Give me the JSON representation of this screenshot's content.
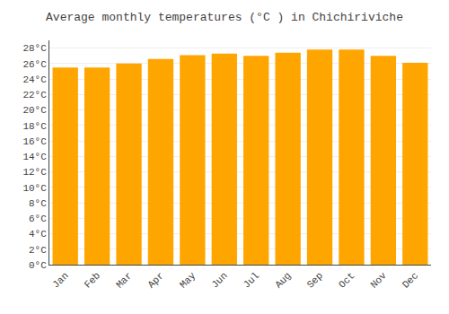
{
  "chart_data": {
    "type": "bar",
    "title": "Average monthly temperatures (°C ) in Chichiriviche",
    "categories": [
      "Jan",
      "Feb",
      "Mar",
      "Apr",
      "May",
      "Jun",
      "Jul",
      "Aug",
      "Sep",
      "Oct",
      "Nov",
      "Dec"
    ],
    "values": [
      25.5,
      25.5,
      26.0,
      26.6,
      27.1,
      27.3,
      27.0,
      27.4,
      27.8,
      27.8,
      27.0,
      26.1
    ],
    "color": "#FFA500",
    "ylim": [
      0,
      29
    ],
    "yticks": [
      {
        "value": 0,
        "label": "0°C"
      },
      {
        "value": 2,
        "label": "2°C"
      },
      {
        "value": 4,
        "label": "4°C"
      },
      {
        "value": 6,
        "label": "6°C"
      },
      {
        "value": 8,
        "label": "8°C"
      },
      {
        "value": 10,
        "label": "10°C"
      },
      {
        "value": 12,
        "label": "12°C"
      },
      {
        "value": 14,
        "label": "14°C"
      },
      {
        "value": 16,
        "label": "16°C"
      },
      {
        "value": 18,
        "label": "18°C"
      },
      {
        "value": 20,
        "label": "20°C"
      },
      {
        "value": 22,
        "label": "22°C"
      },
      {
        "value": 24,
        "label": "24°C"
      },
      {
        "value": 26,
        "label": "26°C"
      },
      {
        "value": 28,
        "label": "28°C"
      }
    ],
    "grid": true
  }
}
